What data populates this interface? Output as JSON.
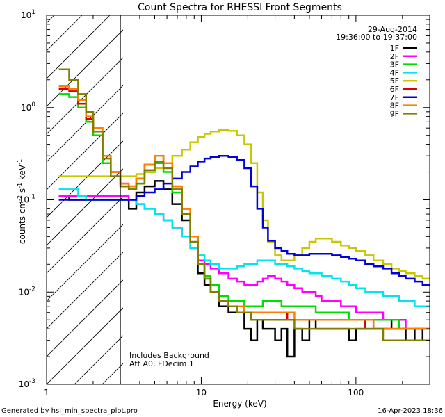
{
  "chart_data": {
    "type": "line",
    "title": "Count Spectra for RHESSI Front Segments",
    "xlabel": "Energy (keV)",
    "ylabel_parts": [
      "counts cm",
      "-2",
      " s",
      "-1",
      " keV",
      "-1"
    ],
    "xscale": "log",
    "yscale": "log",
    "xlim": [
      1,
      300
    ],
    "ylim": [
      0.001,
      10
    ],
    "x_tick_labels": [
      {
        "value": 1,
        "label": "1"
      },
      {
        "value": 10,
        "label": "10"
      },
      {
        "value": 100,
        "label": "100"
      }
    ],
    "y_tick_labels": [
      {
        "value": 0.001,
        "base": "10",
        "exp": "-3"
      },
      {
        "value": 0.01,
        "base": "10",
        "exp": "-2"
      },
      {
        "value": 0.1,
        "base": "10",
        "exp": "-1"
      },
      {
        "value": 1,
        "base": "10",
        "exp": "0"
      },
      {
        "value": 10,
        "base": "10",
        "exp": "1"
      }
    ],
    "date": "29-Aug-2014",
    "time_range": "19:36:00 to 19:37:00",
    "shaded_region_kev": [
      1,
      3
    ],
    "annotations": [
      "Includes Background",
      "Att A0, FDecim 1"
    ],
    "bins_kev": [
      1.2,
      1.4,
      1.6,
      1.8,
      2.0,
      2.3,
      2.6,
      3.0,
      3.4,
      3.8,
      4.3,
      5.0,
      5.7,
      6.5,
      7.5,
      8.5,
      9.5,
      10.5,
      11.5,
      13.0,
      15.0,
      17.0,
      19.0,
      21.0,
      23.0,
      25.0,
      27.0,
      30.0,
      33.0,
      36.0,
      40.0,
      45.0,
      50.0,
      55.0,
      60.0,
      70.0,
      80.0,
      90.0,
      100.0,
      115.0,
      130.0,
      150.0,
      170.0,
      190.0,
      210.0,
      240.0,
      270.0,
      300.0
    ],
    "series": [
      {
        "name": "1F",
        "color": "#000000",
        "values": [
          0.11,
          0.1,
          0.1,
          0.1,
          0.1,
          0.1,
          0.1,
          0.1,
          0.08,
          0.12,
          0.14,
          0.16,
          0.13,
          0.09,
          0.06,
          0.03,
          0.016,
          0.012,
          0.01,
          0.007,
          0.006,
          0.006,
          0.004,
          0.003,
          0.005,
          0.004,
          0.004,
          0.003,
          0.004,
          0.002,
          0.004,
          0.003,
          0.005,
          0.004,
          0.004,
          0.004,
          0.004,
          0.003,
          0.004,
          0.005,
          0.004,
          0.004,
          0.005,
          0.004,
          0.003,
          0.004,
          0.003
        ]
      },
      {
        "name": "2F",
        "color": "#ff00ff",
        "values": [
          0.11,
          0.11,
          0.11,
          0.11,
          0.11,
          0.11,
          0.11,
          0.11,
          0.1,
          0.09,
          0.08,
          0.07,
          0.06,
          0.05,
          0.04,
          0.03,
          0.022,
          0.02,
          0.018,
          0.016,
          0.014,
          0.013,
          0.012,
          0.012,
          0.013,
          0.014,
          0.015,
          0.014,
          0.013,
          0.012,
          0.011,
          0.01,
          0.01,
          0.009,
          0.008,
          0.008,
          0.007,
          0.007,
          0.006,
          0.006,
          0.006,
          0.005,
          0.005,
          0.005,
          0.004,
          0.004,
          0.004
        ]
      },
      {
        "name": "3F",
        "color": "#00dd00",
        "values": [
          1.4,
          1.3,
          1.0,
          0.7,
          0.5,
          0.25,
          0.18,
          0.14,
          0.13,
          0.15,
          0.2,
          0.25,
          0.2,
          0.12,
          0.08,
          0.04,
          0.02,
          0.015,
          0.012,
          0.009,
          0.008,
          0.008,
          0.007,
          0.007,
          0.007,
          0.008,
          0.008,
          0.008,
          0.007,
          0.007,
          0.007,
          0.007,
          0.007,
          0.006,
          0.006,
          0.006,
          0.006,
          0.005,
          0.005,
          0.005,
          0.005,
          0.005,
          0.005,
          0.004,
          0.004,
          0.004,
          0.004
        ]
      },
      {
        "name": "4F",
        "color": "#00e5ee",
        "values": [
          0.13,
          0.13,
          0.11,
          0.1,
          0.1,
          0.1,
          0.1,
          0.1,
          0.1,
          0.09,
          0.08,
          0.07,
          0.06,
          0.05,
          0.04,
          0.03,
          0.025,
          0.022,
          0.02,
          0.018,
          0.018,
          0.019,
          0.02,
          0.02,
          0.022,
          0.022,
          0.022,
          0.02,
          0.02,
          0.019,
          0.018,
          0.017,
          0.016,
          0.016,
          0.015,
          0.014,
          0.013,
          0.012,
          0.011,
          0.01,
          0.01,
          0.009,
          0.009,
          0.008,
          0.008,
          0.007,
          0.007
        ]
      },
      {
        "name": "5F",
        "color": "#c8c800",
        "values": [
          0.18,
          0.18,
          0.18,
          0.18,
          0.18,
          0.18,
          0.18,
          0.18,
          0.18,
          0.19,
          0.2,
          0.22,
          0.25,
          0.3,
          0.35,
          0.42,
          0.48,
          0.52,
          0.55,
          0.57,
          0.56,
          0.5,
          0.4,
          0.25,
          0.12,
          0.06,
          0.035,
          0.025,
          0.022,
          0.022,
          0.025,
          0.03,
          0.035,
          0.038,
          0.038,
          0.035,
          0.032,
          0.03,
          0.028,
          0.025,
          0.022,
          0.02,
          0.018,
          0.017,
          0.016,
          0.015,
          0.014
        ]
      },
      {
        "name": "6F",
        "color": "#dd0000",
        "values": [
          1.6,
          1.5,
          1.1,
          0.75,
          0.55,
          0.3,
          0.2,
          0.15,
          0.14,
          0.17,
          0.24,
          0.3,
          0.25,
          0.14,
          0.08,
          0.04,
          0.02,
          0.014,
          0.01,
          0.008,
          0.007,
          0.007,
          0.006,
          0.006,
          0.006,
          0.006,
          0.006,
          0.006,
          0.006,
          0.005,
          0.005,
          0.005,
          0.005,
          0.005,
          0.005,
          0.005,
          0.005,
          0.005,
          0.005,
          0.004,
          0.004,
          0.004,
          0.004,
          0.004,
          0.004,
          0.004,
          0.004
        ]
      },
      {
        "name": "7F",
        "color": "#0000dd",
        "values": [
          0.1,
          0.1,
          0.1,
          0.1,
          0.1,
          0.1,
          0.1,
          0.1,
          0.1,
          0.11,
          0.12,
          0.13,
          0.15,
          0.17,
          0.2,
          0.23,
          0.26,
          0.28,
          0.29,
          0.3,
          0.29,
          0.27,
          0.22,
          0.14,
          0.08,
          0.05,
          0.036,
          0.03,
          0.028,
          0.026,
          0.025,
          0.025,
          0.026,
          0.026,
          0.026,
          0.025,
          0.024,
          0.023,
          0.022,
          0.02,
          0.019,
          0.018,
          0.016,
          0.015,
          0.014,
          0.013,
          0.012
        ]
      },
      {
        "name": "8F",
        "color": "#ff7f00",
        "values": [
          1.7,
          1.6,
          1.2,
          0.8,
          0.6,
          0.3,
          0.2,
          0.15,
          0.14,
          0.17,
          0.24,
          0.3,
          0.25,
          0.14,
          0.08,
          0.04,
          0.02,
          0.014,
          0.01,
          0.008,
          0.007,
          0.007,
          0.006,
          0.006,
          0.006,
          0.006,
          0.006,
          0.006,
          0.006,
          0.006,
          0.005,
          0.005,
          0.005,
          0.005,
          0.005,
          0.005,
          0.005,
          0.005,
          0.005,
          0.005,
          0.004,
          0.004,
          0.004,
          0.004,
          0.004,
          0.004,
          0.004
        ]
      },
      {
        "name": "9F",
        "color": "#808000",
        "values": [
          2.6,
          2.0,
          1.4,
          0.9,
          0.55,
          0.28,
          0.18,
          0.14,
          0.13,
          0.15,
          0.21,
          0.26,
          0.22,
          0.13,
          0.07,
          0.035,
          0.02,
          0.014,
          0.01,
          0.008,
          0.007,
          0.006,
          0.006,
          0.005,
          0.005,
          0.005,
          0.005,
          0.005,
          0.005,
          0.005,
          0.004,
          0.004,
          0.004,
          0.004,
          0.004,
          0.004,
          0.004,
          0.004,
          0.004,
          0.004,
          0.004,
          0.003,
          0.003,
          0.003,
          0.003,
          0.003,
          0.003
        ]
      }
    ]
  },
  "footer": {
    "generator": "Generated by hsi_min_spectra_plot.pro",
    "timestamp": "16-Apr-2023 18:36"
  }
}
